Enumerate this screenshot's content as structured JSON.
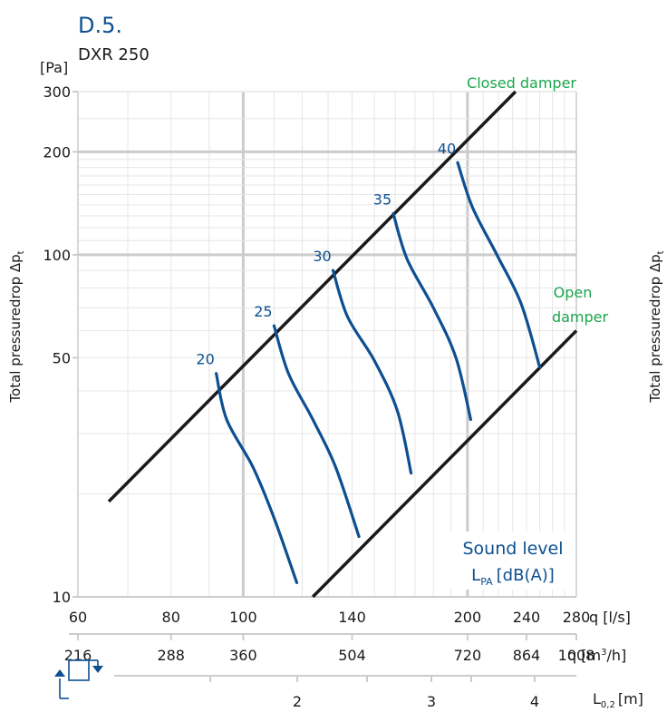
{
  "chart_data": {
    "type": "line",
    "code": "D.5.",
    "model": "DXR 250",
    "y_unit": "[Pa]",
    "y_label_main": "Total pressuredrop Δp",
    "y_label_sub": "t",
    "y_scale": "log",
    "ylim": [
      10,
      300
    ],
    "y_ticks": [
      10,
      50,
      100,
      200,
      300
    ],
    "x_scale": "log",
    "xlim": [
      60,
      280
    ],
    "x_ticks_ls": [
      60,
      80,
      100,
      140,
      200,
      240,
      280
    ],
    "x_unit_ls": "q [l/s]",
    "x_ticks_m3h": [
      "216",
      "288",
      "360",
      "504",
      "720",
      "864",
      "1008"
    ],
    "x_unit_m3h_prefix": "q [m",
    "x_unit_m3h_sup": "3",
    "x_unit_m3h_suffix": "/h]",
    "l_ticks": [
      "2",
      "3",
      "4"
    ],
    "l_unit_main": "L",
    "l_unit_sub": "0,2",
    "l_unit_suffix": "[m]",
    "grid": true,
    "closed_damper_label": "Closed damper",
    "open_damper_label_1": "Open",
    "open_damper_label_2": "damper",
    "sound_level_title": "Sound level",
    "sound_level_unit_main": "L",
    "sound_level_unit_sub": "PA",
    "sound_level_unit_suffix": "[dB(A)]",
    "closed_damper_line": [
      [
        66,
        19
      ],
      [
        232,
        300
      ]
    ],
    "open_damper_line": [
      [
        124,
        10
      ],
      [
        280,
        60
      ]
    ],
    "series": [
      {
        "name": "20",
        "points": [
          [
            92,
            45
          ],
          [
            95,
            33
          ],
          [
            103,
            24
          ],
          [
            110,
            17
          ],
          [
            118,
            11
          ]
        ]
      },
      {
        "name": "25",
        "points": [
          [
            110,
            62
          ],
          [
            115,
            45
          ],
          [
            124,
            33
          ],
          [
            133,
            24
          ],
          [
            143,
            15
          ]
        ]
      },
      {
        "name": "30",
        "points": [
          [
            132,
            90
          ],
          [
            138,
            66
          ],
          [
            150,
            49
          ],
          [
            161,
            35
          ],
          [
            168,
            23
          ]
        ]
      },
      {
        "name": "35",
        "points": [
          [
            159,
            132
          ],
          [
            166,
            97
          ],
          [
            180,
            70
          ],
          [
            193,
            50
          ],
          [
            202,
            33
          ]
        ]
      },
      {
        "name": "40",
        "points": [
          [
            194,
            186
          ],
          [
            203,
            138
          ],
          [
            219,
            100
          ],
          [
            236,
            72
          ],
          [
            250,
            47
          ]
        ]
      }
    ],
    "colors": {
      "curve": "#0d4f91",
      "damper_line": "#1a1a1a",
      "green": "#1aa64b",
      "blue_text": "#0d4f91",
      "grid_major": "#cccccc",
      "grid_minor": "#e6e6e6"
    }
  }
}
